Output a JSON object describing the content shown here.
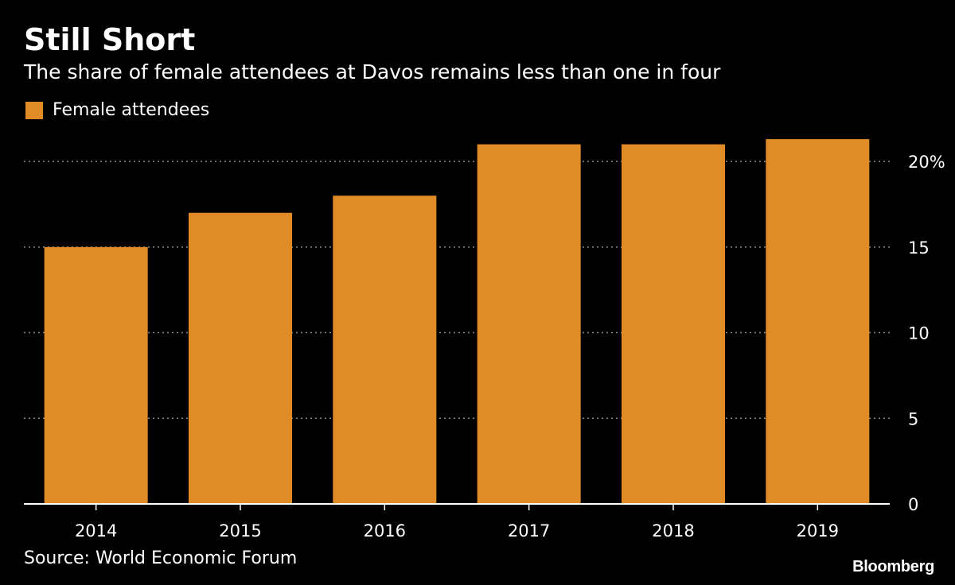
{
  "header": {
    "title": "Still Short",
    "subtitle": "The share of female attendees at Davos remains less than one in four"
  },
  "footer": {
    "source": "Source: World Economic Forum",
    "brand": "Bloomberg"
  },
  "colors": {
    "background": "#000000",
    "bar": "#e08b25",
    "text": "#ffffff",
    "grid": "#8a8a8a"
  },
  "chart_data": {
    "type": "bar",
    "categories": [
      "2014",
      "2015",
      "2016",
      "2017",
      "2018",
      "2019"
    ],
    "series": [
      {
        "name": "Female attendees",
        "values": [
          15,
          17,
          18,
          21,
          21,
          21.3
        ]
      }
    ],
    "ylim": [
      0,
      22
    ],
    "yticks": [
      0,
      5,
      10,
      15,
      20
    ],
    "ytick_labels": [
      "0",
      "5",
      "10",
      "15",
      "20%"
    ],
    "grid": true,
    "legend_position": "top-left",
    "y_axis_position": "right"
  }
}
